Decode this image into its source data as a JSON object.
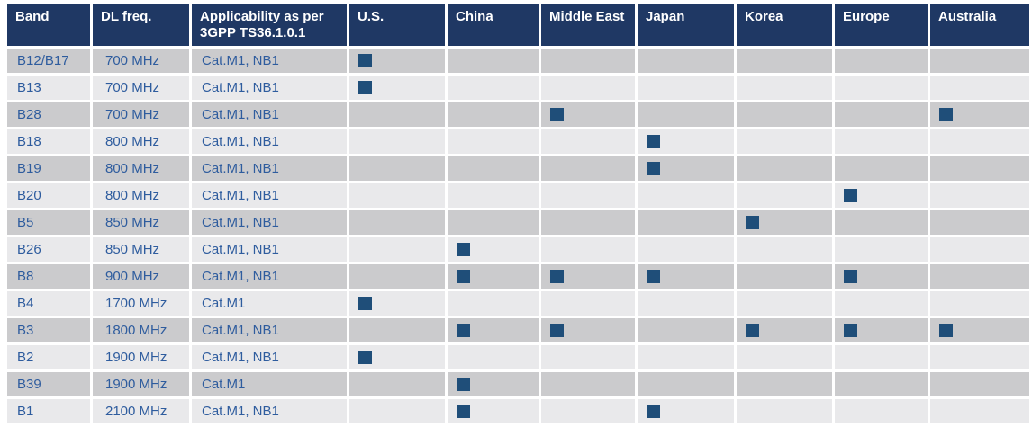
{
  "table": {
    "columns": [
      {
        "label": "Band"
      },
      {
        "label": "DL freq."
      },
      {
        "label": "Applicability as per 3GPP TS36.1.0.1"
      },
      {
        "label": "U.S."
      },
      {
        "label": "China"
      },
      {
        "label": "Middle East"
      },
      {
        "label": "Japan"
      },
      {
        "label": "Korea"
      },
      {
        "label": "Europe"
      },
      {
        "label": "Australia"
      }
    ],
    "regions": [
      "U.S.",
      "China",
      "Middle East",
      "Japan",
      "Korea",
      "Europe",
      "Australia"
    ],
    "rows": [
      {
        "band": "B12/B17",
        "dl_freq": "700 MHz",
        "applicability": "Cat.M1, NB1",
        "regions": [
          "U.S."
        ]
      },
      {
        "band": "B13",
        "dl_freq": "700 MHz",
        "applicability": "Cat.M1, NB1",
        "regions": [
          "U.S."
        ]
      },
      {
        "band": "B28",
        "dl_freq": "700 MHz",
        "applicability": "Cat.M1, NB1",
        "regions": [
          "Middle East",
          "Australia"
        ]
      },
      {
        "band": "B18",
        "dl_freq": "800 MHz",
        "applicability": "Cat.M1, NB1",
        "regions": [
          "Japan"
        ]
      },
      {
        "band": "B19",
        "dl_freq": "800 MHz",
        "applicability": "Cat.M1, NB1",
        "regions": [
          "Japan"
        ]
      },
      {
        "band": "B20",
        "dl_freq": "800 MHz",
        "applicability": "Cat.M1, NB1",
        "regions": [
          "Europe"
        ]
      },
      {
        "band": "B5",
        "dl_freq": "850 MHz",
        "applicability": "Cat.M1, NB1",
        "regions": [
          "Korea"
        ]
      },
      {
        "band": "B26",
        "dl_freq": "850 MHz",
        "applicability": "Cat.M1, NB1",
        "regions": [
          "China"
        ]
      },
      {
        "band": "B8",
        "dl_freq": "900 MHz",
        "applicability": "Cat.M1, NB1",
        "regions": [
          "China",
          "Middle East",
          "Japan",
          "Europe"
        ]
      },
      {
        "band": "B4",
        "dl_freq": "1700 MHz",
        "applicability": "Cat.M1",
        "regions": [
          "U.S."
        ]
      },
      {
        "band": "B3",
        "dl_freq": "1800 MHz",
        "applicability": "Cat.M1, NB1",
        "regions": [
          "China",
          "Middle East",
          "Korea",
          "Europe",
          "Australia"
        ]
      },
      {
        "band": "B2",
        "dl_freq": "1900 MHz",
        "applicability": "Cat.M1, NB1",
        "regions": [
          "U.S."
        ]
      },
      {
        "band": "B39",
        "dl_freq": "1900 MHz",
        "applicability": "Cat.M1",
        "regions": [
          "China"
        ]
      },
      {
        "band": "B1",
        "dl_freq": "2100 MHz",
        "applicability": "Cat.M1, NB1",
        "regions": [
          "China",
          "Japan"
        ]
      }
    ]
  },
  "colors": {
    "header_bg": "#1F3864",
    "header_text": "#FFFFFF",
    "row_gray": "#CBCBCD",
    "row_light": "#E9E9EB",
    "cell_text": "#2E5C9E",
    "marker_blue": "#1F4E79"
  }
}
